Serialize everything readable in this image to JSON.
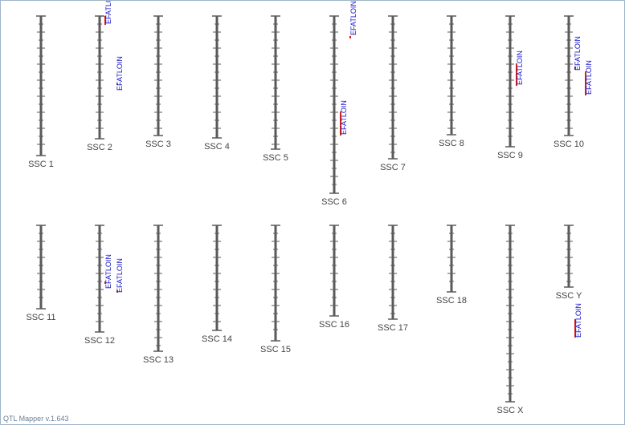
{
  "app": {
    "version": "QTL Mapper v.1.643"
  },
  "colors": {
    "chromosome": "#5a5a5a",
    "tick": "#5a5a5a",
    "qtl_bar": "#d42020",
    "qtl_text": "#1515c8",
    "label": "#444444"
  },
  "chromosomes": [
    {
      "label": "SSC 1",
      "qtls": []
    },
    {
      "label": "SSC 2",
      "qtls": [
        {
          "trait": "EFATLOIN"
        },
        {
          "trait": "EFATLOIN"
        }
      ]
    },
    {
      "label": "SSC 3",
      "qtls": []
    },
    {
      "label": "SSC 4",
      "qtls": []
    },
    {
      "label": "SSC 5",
      "qtls": []
    },
    {
      "label": "SSC 6",
      "qtls": [
        {
          "trait": "EFATLOIN"
        },
        {
          "trait": "EFATLOIN"
        }
      ]
    },
    {
      "label": "SSC 7",
      "qtls": []
    },
    {
      "label": "SSC 8",
      "qtls": []
    },
    {
      "label": "SSC 9",
      "qtls": [
        {
          "trait": "EFATLOIN"
        }
      ]
    },
    {
      "label": "SSC 10",
      "qtls": [
        {
          "trait": "EFATLOIN"
        },
        {
          "trait": "EFATLOIN"
        }
      ]
    },
    {
      "label": "SSC 11",
      "qtls": []
    },
    {
      "label": "SSC 12",
      "qtls": [
        {
          "trait": "EFATLOIN"
        },
        {
          "trait": "EFATLOIN"
        }
      ]
    },
    {
      "label": "SSC 13",
      "qtls": []
    },
    {
      "label": "SSC 14",
      "qtls": []
    },
    {
      "label": "SSC 15",
      "qtls": []
    },
    {
      "label": "SSC 16",
      "qtls": []
    },
    {
      "label": "SSC 17",
      "qtls": []
    },
    {
      "label": "SSC 18",
      "qtls": []
    },
    {
      "label": "SSC X",
      "qtls": []
    },
    {
      "label": "SSC Y",
      "qtls": [
        {
          "trait": "EFATLOIN"
        }
      ]
    }
  ]
}
